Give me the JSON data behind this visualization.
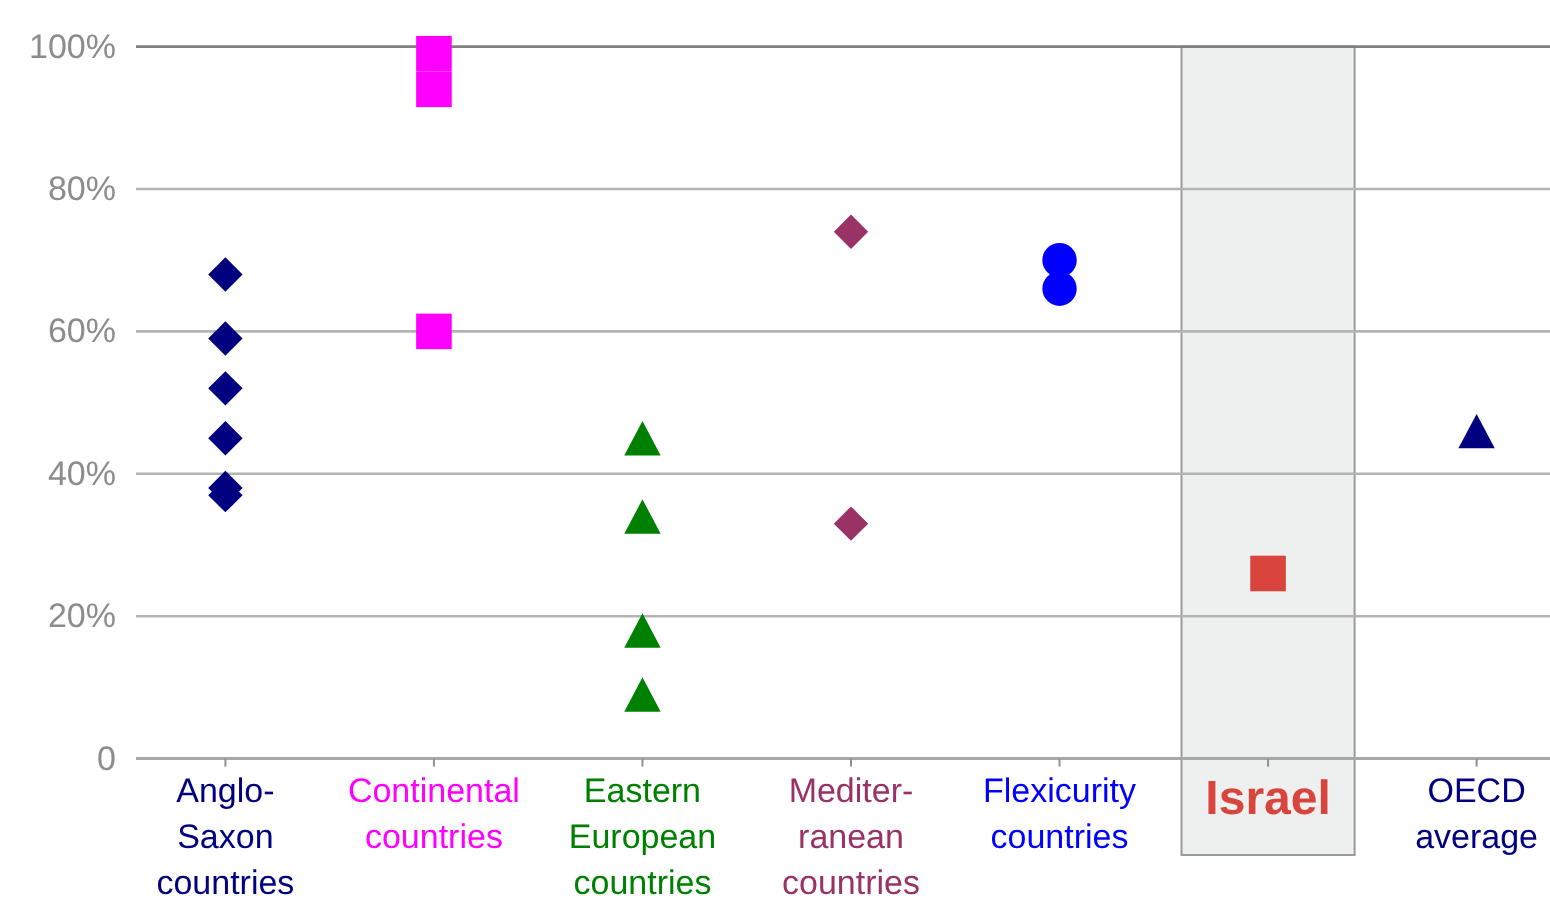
{
  "chart_data": {
    "type": "scatter",
    "categories": [
      "Anglo-\nSaxon\ncountries",
      "Continental\ncountries",
      "Eastern\nEuropean\ncountries",
      "Mediter-\nranean\ncountries",
      "Flexicurity\ncountries",
      "Israel",
      "OECD\naverage"
    ],
    "ylim": [
      0,
      100
    ],
    "yticks": [
      0,
      {
        "value": 20,
        "label": "20%"
      },
      {
        "value": 40,
        "label": "40%"
      },
      {
        "value": 60,
        "label": "60%"
      },
      {
        "value": 80,
        "label": "80%"
      },
      {
        "value": 100,
        "label": "100%"
      }
    ],
    "grid": "y",
    "bands": [
      {
        "axis": "x",
        "from": "Israel",
        "to": "Israel",
        "color": "#eef0ef"
      }
    ],
    "series": [
      {
        "color": "#000080",
        "marker": "diamond",
        "x": [
          "Anglo-\nSaxon\ncountries",
          "Anglo-\nSaxon\ncountries",
          "Anglo-\nSaxon\ncountries",
          "Anglo-\nSaxon\ncountries",
          "Anglo-\nSaxon\ncountries",
          "Anglo-\nSaxon\ncountries"
        ],
        "values": [
          68,
          59,
          52,
          45,
          38,
          37
        ]
      },
      {
        "color": "#ff00ff",
        "marker": "square",
        "x": [
          "Continental\ncountries",
          "Continental\ncountries",
          "Continental\ncountries"
        ],
        "values": [
          99,
          94,
          60
        ]
      },
      {
        "color": "#008000",
        "marker": "triangle",
        "x": [
          "Eastern\nEuropean\ncountries",
          "Eastern\nEuropean\ncountries",
          "Eastern\nEuropean\ncountries",
          "Eastern\nEuropean\ncountries"
        ],
        "values": [
          45,
          34,
          18,
          9
        ]
      },
      {
        "color": "#993366",
        "marker": "diamond",
        "x": [
          "Mediter-\nranean\ncountries",
          "Mediter-\nranean\ncountries"
        ],
        "values": [
          74,
          33
        ]
      },
      {
        "color": "#0000ff",
        "marker": "circle",
        "x": [
          "Flexicurity\ncountries",
          "Flexicurity\ncountries"
        ],
        "values": [
          70,
          66
        ]
      },
      {
        "color": "#d9453c",
        "marker": "square",
        "x": [
          "Israel"
        ],
        "values": [
          26
        ]
      },
      {
        "color": "#000080",
        "marker": "triangle",
        "x": [
          "OECD\naverage"
        ],
        "values": [
          46
        ]
      }
    ]
  }
}
